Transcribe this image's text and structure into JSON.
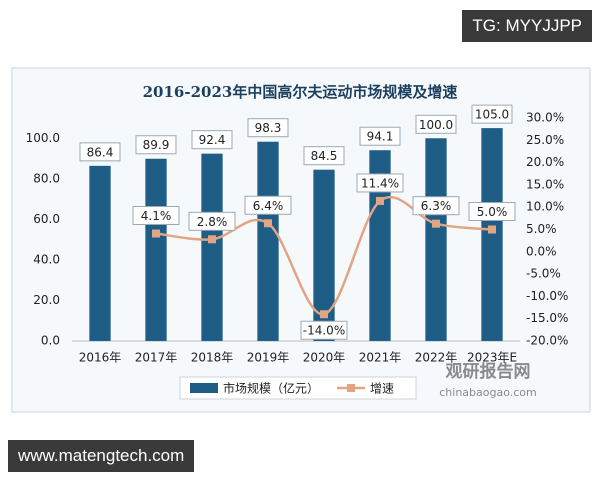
{
  "chart_data": {
    "type": "bar_line",
    "title": "2016-2023年中国高尔夫运动市场规模及增速",
    "categories": [
      "2016年",
      "2017年",
      "2018年",
      "2019年",
      "2020年",
      "2021年",
      "2022年",
      "2023年E"
    ],
    "series": [
      {
        "name": "市场规模（亿元）",
        "type": "bar",
        "color": "#1d5d86",
        "values": [
          86.4,
          89.9,
          92.4,
          98.3,
          84.5,
          94.1,
          100.0,
          105.0
        ],
        "value_labels": [
          "86.4",
          "89.9",
          "92.4",
          "98.3",
          "84.5",
          "94.1",
          "100.0",
          "105.0"
        ]
      },
      {
        "name": "增速",
        "type": "line",
        "axis": "y2",
        "color": "#e2a584",
        "values": [
          null,
          4.1,
          2.8,
          6.4,
          -14.0,
          11.4,
          6.3,
          5.0
        ],
        "value_labels": [
          null,
          "4.1%",
          "2.8%",
          "6.4%",
          "-14.0%",
          "11.4%",
          "6.3%",
          "5.0%"
        ]
      }
    ],
    "ylim": [
      0,
      110
    ],
    "yticks": [
      {
        "value": 0,
        "label": "0.0"
      },
      {
        "value": 20,
        "label": "20.0"
      },
      {
        "value": 40,
        "label": "40.0"
      },
      {
        "value": 60,
        "label": "60.0"
      },
      {
        "value": 80,
        "label": "80.0"
      },
      {
        "value": 100,
        "label": "100.0"
      }
    ],
    "y2lim": [
      -20,
      30
    ],
    "y2ticks": [
      {
        "value": -20,
        "label": "-20.0%"
      },
      {
        "value": -15,
        "label": "-15.0%"
      },
      {
        "value": -10,
        "label": "-10.0%"
      },
      {
        "value": -5,
        "label": "-5.0%"
      },
      {
        "value": 0,
        "label": "0.0%"
      },
      {
        "value": 5,
        "label": "5.0%"
      },
      {
        "value": 10,
        "label": "10.0%"
      },
      {
        "value": 15,
        "label": "15.0%"
      },
      {
        "value": 20,
        "label": "20.0%"
      },
      {
        "value": 25,
        "label": "25.0%"
      },
      {
        "value": 30,
        "label": "30.0%"
      }
    ],
    "grid": false,
    "legend": "bottom"
  },
  "watermark": {
    "name": "观研报告网",
    "url": "chinabaogao.com"
  },
  "overlays": {
    "top": "TG: MYYJJPP",
    "bottom": "www.matengtech.com"
  }
}
